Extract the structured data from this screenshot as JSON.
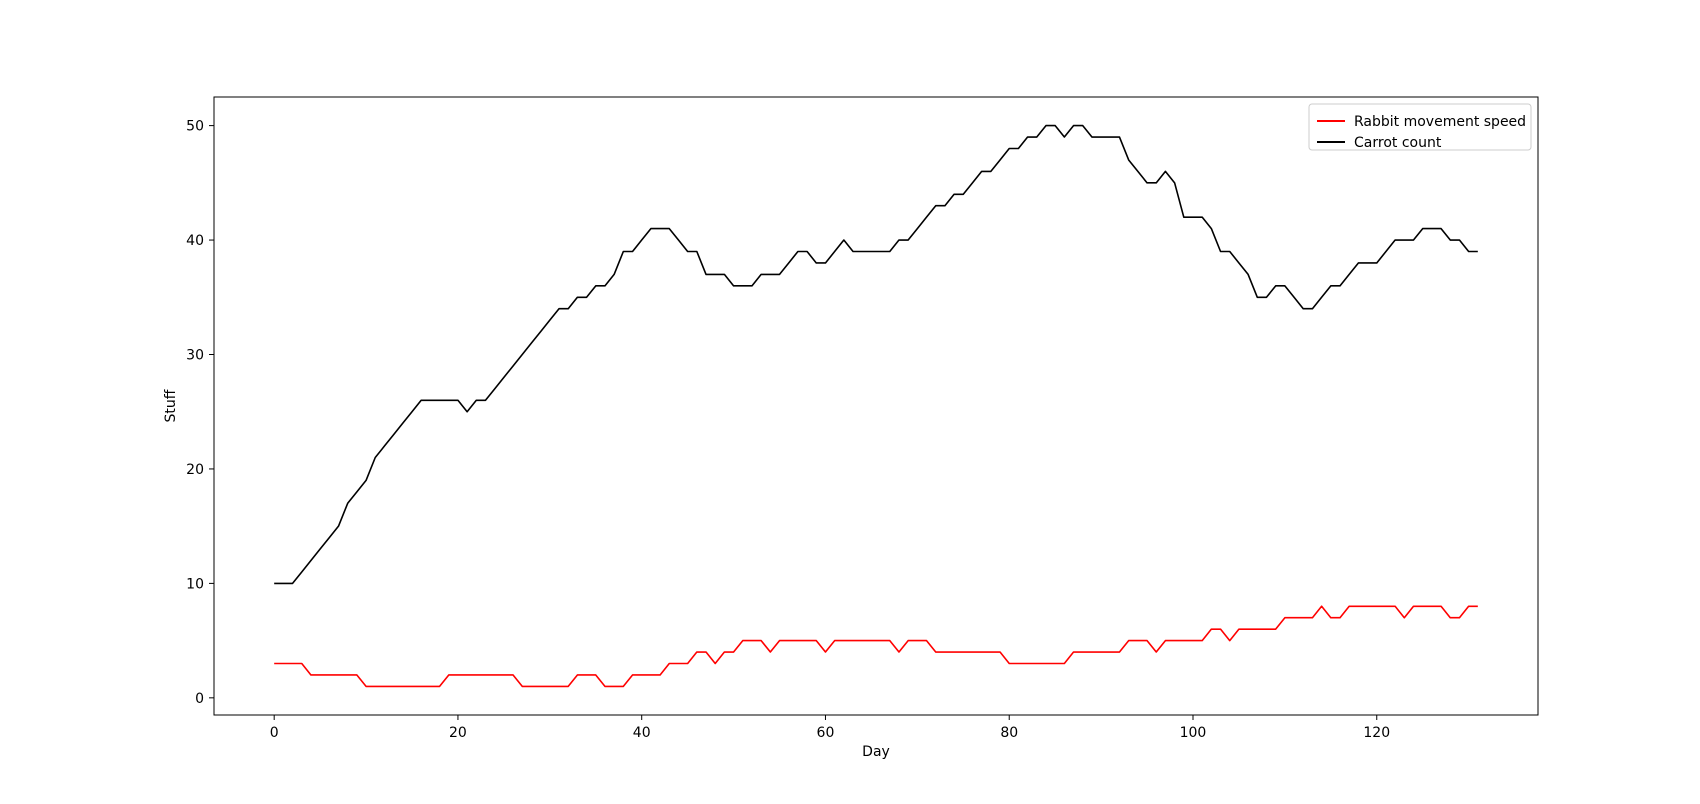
{
  "chart_data": {
    "type": "line",
    "title": "",
    "xlabel": "Day",
    "ylabel": "Stuff",
    "xlim": [
      -6.55,
      137.55
    ],
    "ylim": [
      -1.5,
      52.5
    ],
    "xticks": [
      0,
      20,
      40,
      60,
      80,
      100,
      120
    ],
    "yticks": [
      0,
      10,
      20,
      30,
      40,
      50
    ],
    "grid": false,
    "legend_position": "top-right",
    "x": [
      0,
      1,
      2,
      3,
      4,
      5,
      6,
      7,
      8,
      9,
      10,
      11,
      12,
      13,
      14,
      15,
      16,
      17,
      18,
      19,
      20,
      21,
      22,
      23,
      24,
      25,
      26,
      27,
      28,
      29,
      30,
      31,
      32,
      33,
      34,
      35,
      36,
      37,
      38,
      39,
      40,
      41,
      42,
      43,
      44,
      45,
      46,
      47,
      48,
      49,
      50,
      51,
      52,
      53,
      54,
      55,
      56,
      57,
      58,
      59,
      60,
      61,
      62,
      63,
      64,
      65,
      66,
      67,
      68,
      69,
      70,
      71,
      72,
      73,
      74,
      75,
      76,
      77,
      78,
      79,
      80,
      81,
      82,
      83,
      84,
      85,
      86,
      87,
      88,
      89,
      90,
      91,
      92,
      93,
      94,
      95,
      96,
      97,
      98,
      99,
      100,
      101,
      102,
      103,
      104,
      105,
      106,
      107,
      108,
      109,
      110,
      111,
      112,
      113,
      114,
      115,
      116,
      117,
      118,
      119,
      120,
      121,
      122,
      123,
      124,
      125,
      126,
      127,
      128,
      129,
      130,
      131
    ],
    "series": [
      {
        "name": "Rabbit movement speed",
        "color": "#ff0000",
        "values": [
          3,
          3,
          3,
          3,
          2,
          2,
          2,
          2,
          2,
          2,
          1,
          1,
          1,
          1,
          1,
          1,
          1,
          1,
          1,
          2,
          2,
          2,
          2,
          2,
          2,
          2,
          2,
          1,
          1,
          1,
          1,
          1,
          1,
          2,
          2,
          2,
          1,
          1,
          1,
          2,
          2,
          2,
          2,
          3,
          3,
          3,
          4,
          4,
          3,
          4,
          4,
          5,
          5,
          5,
          4,
          5,
          5,
          5,
          5,
          5,
          4,
          5,
          5,
          5,
          5,
          5,
          5,
          5,
          4,
          5,
          5,
          5,
          4,
          4,
          4,
          4,
          4,
          4,
          4,
          4,
          3,
          3,
          3,
          3,
          3,
          3,
          3,
          4,
          4,
          4,
          4,
          4,
          4,
          5,
          5,
          5,
          4,
          5,
          5,
          5,
          5,
          5,
          6,
          6,
          5,
          6,
          6,
          6,
          6,
          6,
          7,
          7,
          7,
          7,
          8,
          7,
          7,
          8,
          8,
          8,
          8,
          8,
          8,
          7,
          8,
          8,
          8,
          8,
          7,
          7,
          8,
          8
        ]
      },
      {
        "name": "Carrot count",
        "color": "#000000",
        "values": [
          10,
          10,
          10,
          11,
          12,
          13,
          14,
          15,
          17,
          18,
          19,
          21,
          22,
          23,
          24,
          25,
          26,
          26,
          26,
          26,
          26,
          25,
          26,
          26,
          27,
          28,
          29,
          30,
          31,
          32,
          33,
          34,
          34,
          35,
          35,
          36,
          36,
          37,
          39,
          39,
          40,
          41,
          41,
          41,
          40,
          39,
          39,
          37,
          37,
          37,
          36,
          36,
          36,
          37,
          37,
          37,
          38,
          39,
          39,
          38,
          38,
          39,
          40,
          39,
          39,
          39,
          39,
          39,
          40,
          40,
          41,
          42,
          43,
          43,
          44,
          44,
          45,
          46,
          46,
          47,
          48,
          48,
          49,
          49,
          50,
          50,
          49,
          50,
          50,
          49,
          49,
          49,
          49,
          47,
          46,
          45,
          45,
          46,
          45,
          42,
          42,
          42,
          41,
          39,
          39,
          38,
          37,
          35,
          35,
          36,
          36,
          35,
          34,
          34,
          35,
          36,
          36,
          37,
          38,
          38,
          38,
          39,
          40,
          40,
          40,
          41,
          41,
          41,
          40,
          40,
          39,
          39
        ]
      }
    ]
  }
}
